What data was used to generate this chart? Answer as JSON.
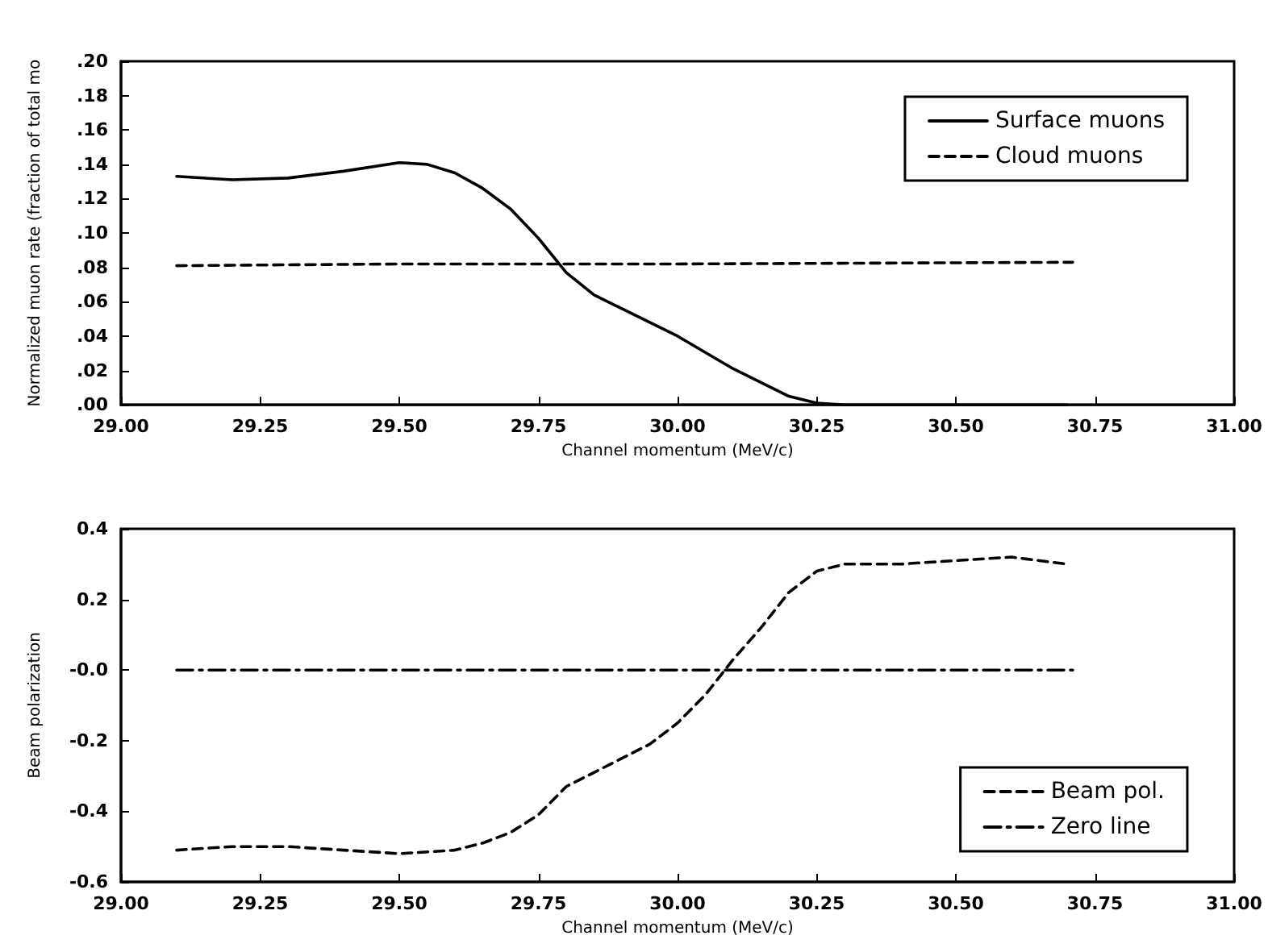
{
  "chart_data": [
    {
      "type": "line",
      "xlabel": "Channel momentum (MeV/c)",
      "ylabel": "Normalized muon rate (fraction of total mo",
      "xlim": [
        29.0,
        31.0
      ],
      "xticks": [
        {
          "value": 29.0,
          "label": "29.00"
        },
        {
          "value": 29.25,
          "label": "29.25"
        },
        {
          "value": 29.5,
          "label": "29.50"
        },
        {
          "value": 29.75,
          "label": "29.75"
        },
        {
          "value": 30.0,
          "label": "30.00"
        },
        {
          "value": 30.25,
          "label": "30.25"
        },
        {
          "value": 30.5,
          "label": "30.50"
        },
        {
          "value": 30.75,
          "label": "30.75"
        },
        {
          "value": 31.0,
          "label": "31.00"
        }
      ],
      "ylim": [
        0,
        0.2
      ],
      "yticks": [
        {
          "value": 0,
          "label": ".00"
        },
        {
          "value": 0.02,
          "label": ".02"
        },
        {
          "value": 0.04,
          "label": ".04"
        },
        {
          "value": 0.06,
          "label": ".06"
        },
        {
          "value": 0.08,
          "label": ".08"
        },
        {
          "value": 0.1,
          "label": ".10"
        },
        {
          "value": 0.12,
          "label": ".12"
        },
        {
          "value": 0.14,
          "label": ".14"
        },
        {
          "value": 0.16,
          "label": ".16"
        },
        {
          "value": 0.18,
          "label": ".18"
        },
        {
          "value": 0.2,
          "label": ".20"
        }
      ],
      "legend": "top right",
      "marker": "none",
      "grid": false,
      "series": [
        {
          "name": "Surface muons",
          "color": "#000000",
          "line_style": "solid",
          "x": [
            29.1,
            29.2,
            29.3,
            29.4,
            29.5,
            29.55,
            29.6,
            29.65,
            29.7,
            29.75,
            29.8,
            29.85,
            29.9,
            30.0,
            30.1,
            30.2,
            30.25,
            30.3,
            30.5,
            30.7
          ],
          "values": [
            0.133,
            0.131,
            0.132,
            0.136,
            0.141,
            0.14,
            0.135,
            0.126,
            0.114,
            0.097,
            0.077,
            0.064,
            0.056,
            0.04,
            0.021,
            0.005,
            0.001,
            0.0,
            0.0,
            0.0
          ]
        },
        {
          "name": "Cloud muons",
          "color": "#000000",
          "line_style": "dashed",
          "x": [
            29.1,
            29.5,
            30.0,
            30.71
          ],
          "values": [
            0.081,
            0.082,
            0.082,
            0.083
          ]
        }
      ]
    },
    {
      "type": "line",
      "xlabel": "Channel momentum (MeV/c)",
      "ylabel": "Beam polarization",
      "xlim": [
        29.0,
        31.0
      ],
      "xticks": [
        {
          "value": 29.0,
          "label": "29.00"
        },
        {
          "value": 29.25,
          "label": "29.25"
        },
        {
          "value": 29.5,
          "label": "29.50"
        },
        {
          "value": 29.75,
          "label": "29.75"
        },
        {
          "value": 30.0,
          "label": "30.00"
        },
        {
          "value": 30.25,
          "label": "30.25"
        },
        {
          "value": 30.5,
          "label": "30.50"
        },
        {
          "value": 30.75,
          "label": "30.75"
        },
        {
          "value": 31.0,
          "label": "31.00"
        }
      ],
      "ylim": [
        -0.6,
        0.4
      ],
      "yticks": [
        -0.6,
        -0.4,
        -0.2,
        {
          "value": 0,
          "label": "-0.0"
        },
        0.2,
        0.4
      ],
      "legend": "bottom right",
      "marker": "none",
      "grid": false,
      "series": [
        {
          "name": "Beam pol.",
          "color": "#000000",
          "line_style": "dashed",
          "x": [
            29.1,
            29.2,
            29.3,
            29.4,
            29.5,
            29.6,
            29.65,
            29.7,
            29.75,
            29.8,
            29.9,
            29.95,
            30.0,
            30.05,
            30.1,
            30.15,
            30.2,
            30.25,
            30.3,
            30.4,
            30.5,
            30.6,
            30.7
          ],
          "values": [
            -0.51,
            -0.5,
            -0.5,
            -0.51,
            -0.52,
            -0.51,
            -0.49,
            -0.46,
            -0.41,
            -0.33,
            -0.25,
            -0.21,
            -0.15,
            -0.07,
            0.03,
            0.12,
            0.22,
            0.28,
            0.3,
            0.3,
            0.31,
            0.32,
            0.3
          ]
        },
        {
          "name": "Zero line",
          "color": "#000000",
          "line_style": "dashdot",
          "x": [
            29.1,
            30.71
          ],
          "values": [
            0,
            0
          ]
        }
      ]
    }
  ]
}
